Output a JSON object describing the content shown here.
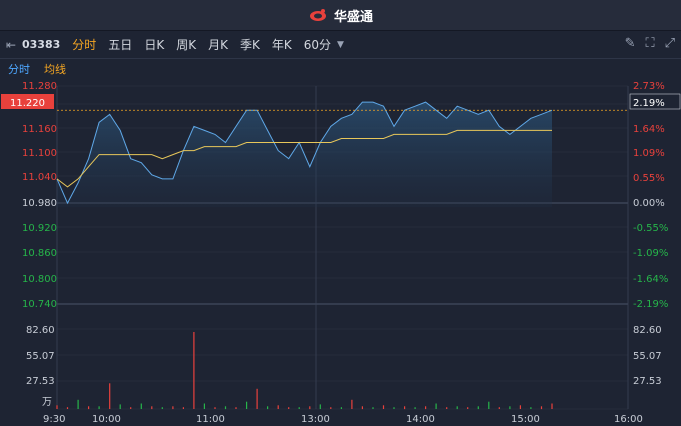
{
  "app": {
    "brand": "华盛通"
  },
  "toolbar": {
    "code": "03383",
    "tabs": [
      "分时",
      "五日",
      "日K",
      "周K",
      "月K",
      "季K",
      "年K",
      "60分"
    ],
    "active_tab": "分时"
  },
  "subbar": {
    "tab1": "分时",
    "tab2": "均线"
  },
  "price_axis": [
    "11.280",
    "11.160",
    "11.100",
    "11.040",
    "10.980",
    "10.920",
    "10.860",
    "10.800",
    "10.740"
  ],
  "current_price": "11.220",
  "pct_axis": [
    "2.73%",
    "1.64%",
    "1.09%",
    "0.55%",
    "0.00%",
    "-0.55%",
    "-1.09%",
    "-1.64%",
    "-2.19%"
  ],
  "current_pct": "2.19%",
  "volume_axis": [
    "82.60",
    "55.07",
    "27.53"
  ],
  "volume_unit": "万",
  "time_axis": [
    "9:30",
    "10:00",
    "11:00",
    "13:00",
    "14:00",
    "15:00",
    "16:00"
  ],
  "colors": {
    "up": "#e8413c",
    "down": "#26b54a",
    "price_line": "#5fa8e8",
    "avg_line": "#e8c75a",
    "accent": "#f5a623"
  },
  "chart_data": {
    "type": "line",
    "series": [
      {
        "name": "分时",
        "values": [
          11.05,
          10.99,
          11.04,
          11.1,
          11.19,
          11.21,
          11.17,
          11.1,
          11.09,
          11.06,
          11.05,
          11.05,
          11.12,
          11.18,
          11.17,
          11.16,
          11.14,
          11.18,
          11.22,
          11.22,
          11.17,
          11.12,
          11.1,
          11.14,
          11.08,
          11.14,
          11.18,
          11.2,
          11.21,
          11.24,
          11.24,
          11.23,
          11.18,
          11.22,
          11.23,
          11.24,
          11.22,
          11.2,
          11.23,
          11.22,
          11.21,
          11.22,
          11.18,
          11.16,
          11.18,
          11.2,
          11.21,
          11.22
        ]
      },
      {
        "name": "均线",
        "values": [
          11.05,
          11.03,
          11.05,
          11.08,
          11.11,
          11.11,
          11.11,
          11.11,
          11.11,
          11.11,
          11.1,
          11.11,
          11.12,
          11.12,
          11.13,
          11.13,
          11.13,
          11.13,
          11.14,
          11.14,
          11.14,
          11.14,
          11.14,
          11.14,
          11.14,
          11.14,
          11.14,
          11.15,
          11.15,
          11.15,
          11.15,
          11.15,
          11.16,
          11.16,
          11.16,
          11.16,
          11.16,
          11.16,
          11.17,
          11.17,
          11.17,
          11.17,
          11.17,
          11.17,
          11.17,
          11.17,
          11.17,
          11.17
        ]
      }
    ],
    "volume": [
      4,
      2,
      10,
      3,
      3,
      28,
      5,
      2,
      6,
      3,
      2,
      3,
      2,
      84,
      6,
      2,
      3,
      2,
      8,
      22,
      3,
      4,
      2,
      2,
      3,
      5,
      2,
      2,
      10,
      3,
      2,
      4,
      2,
      3,
      2,
      3,
      6,
      2,
      3,
      2,
      3,
      8,
      2,
      3,
      4,
      2,
      3,
      6
    ],
    "volume_colors": [
      "up",
      "up",
      "down",
      "up",
      "down",
      "up",
      "down",
      "up",
      "down",
      "up",
      "down",
      "up",
      "up",
      "up",
      "down",
      "up",
      "down",
      "up",
      "down",
      "up",
      "down",
      "up",
      "up",
      "down",
      "up",
      "down",
      "up",
      "down",
      "up",
      "up",
      "down",
      "up",
      "down",
      "up",
      "down",
      "up",
      "down",
      "up",
      "down",
      "up",
      "down",
      "down",
      "up",
      "down",
      "up",
      "down",
      "up",
      "up"
    ],
    "ylim": [
      10.74,
      11.28
    ],
    "prev_close": 10.98
  }
}
